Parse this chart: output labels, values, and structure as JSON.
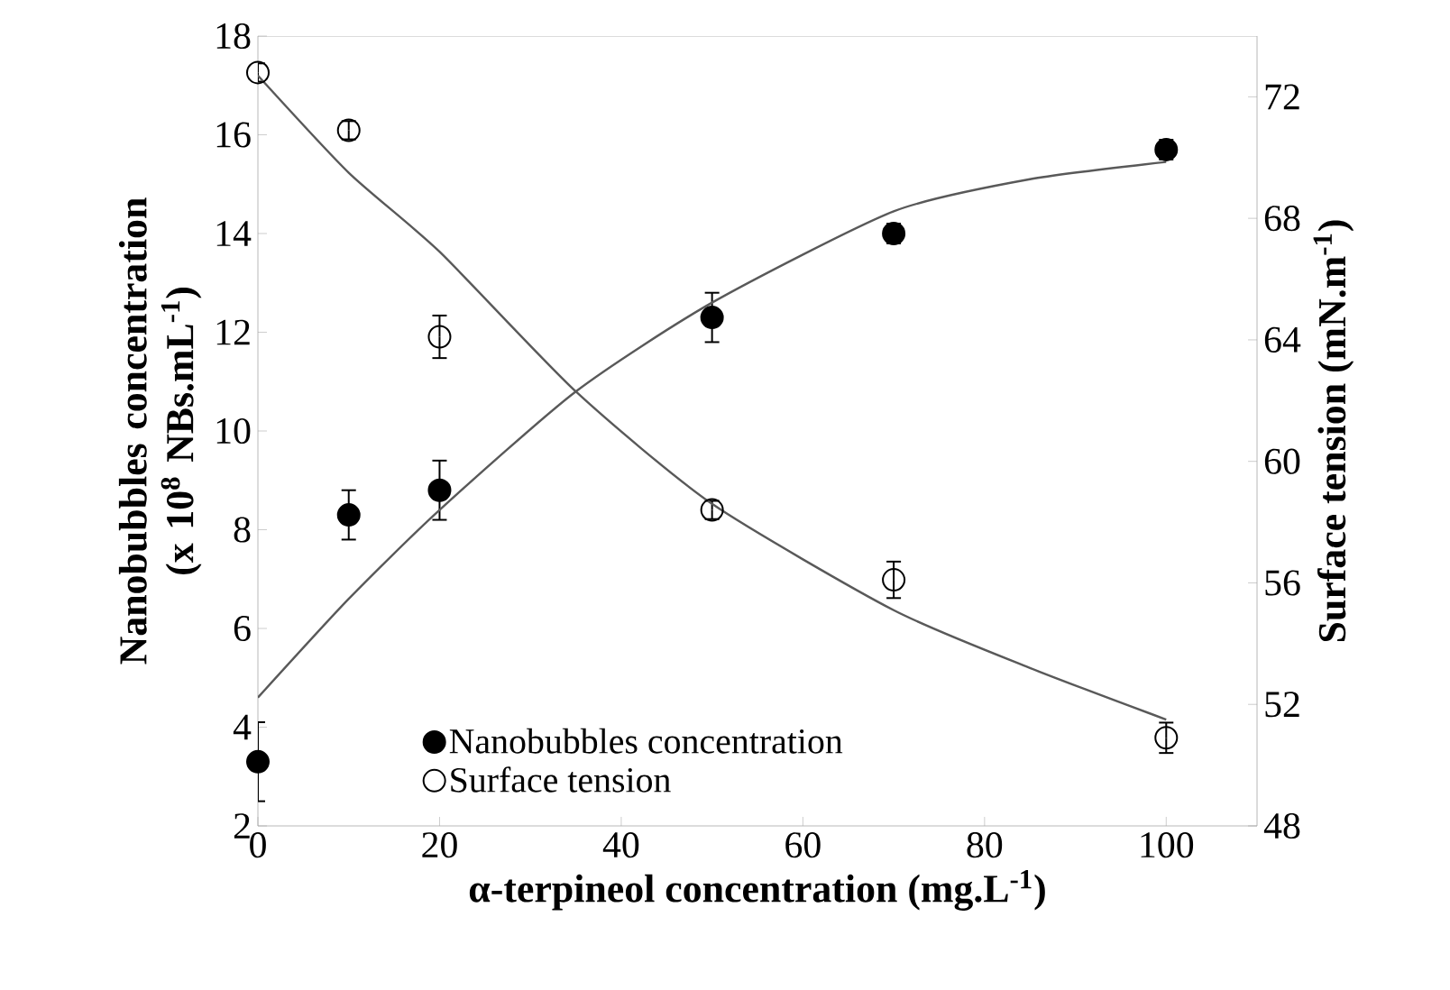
{
  "chart_data": {
    "type": "scatter",
    "xlabel": "α-terpineol concentration (mg.L$^{-1}$)",
    "ylabel": "Nanobubbles concentration (x 10$^{8}$ NBs.mL$^{-1}$)",
    "y2label": "Surface tension (mN.m$^{-1}$)",
    "x": [
      0,
      10,
      20,
      50,
      70,
      100
    ],
    "series": [
      {
        "name": "Nanobubbles concentration",
        "color": "#000000",
        "values": [
          3.3,
          8.3,
          8.8,
          12.3,
          14.0,
          15.7
        ],
        "errors": [
          0.8,
          0.5,
          0.6,
          0.5,
          0.2,
          0.2
        ]
      },
      {
        "name": "Surface tension",
        "color": "#000000",
        "axis": "y2",
        "values": [
          72.8,
          70.9,
          64.1,
          58.4,
          56.1,
          50.9
        ],
        "errors": [
          0.3,
          0.3,
          0.7,
          0.3,
          0.6,
          0.5
        ]
      },
      {
        "type": "line",
        "marker": "none",
        "color": "#595959",
        "x": [
          0,
          10,
          20,
          35,
          50,
          70,
          85,
          100
        ],
        "values": [
          4.6,
          6.6,
          8.4,
          10.8,
          12.6,
          14.45,
          15.1,
          15.45
        ]
      },
      {
        "type": "line",
        "marker": "none",
        "color": "#595959",
        "axis": "y2",
        "x": [
          0,
          10,
          20,
          35,
          50,
          70,
          85,
          100
        ],
        "values": [
          72.7,
          69.5,
          66.9,
          62.3,
          58.6,
          55.1,
          53.2,
          51.5
        ]
      }
    ],
    "xlim": [
      0,
      110
    ],
    "xticks": [
      0,
      20,
      40,
      60,
      80,
      100
    ],
    "ylim": [
      2,
      18
    ],
    "yticks": [
      2,
      4,
      6,
      8,
      10,
      12,
      14,
      16,
      18
    ],
    "y2lim": [
      48,
      74
    ],
    "y2ticks": [
      48,
      52,
      56,
      60,
      64,
      68,
      72
    ],
    "marker": "circle",
    "legend": "bottom",
    "grid": false
  }
}
